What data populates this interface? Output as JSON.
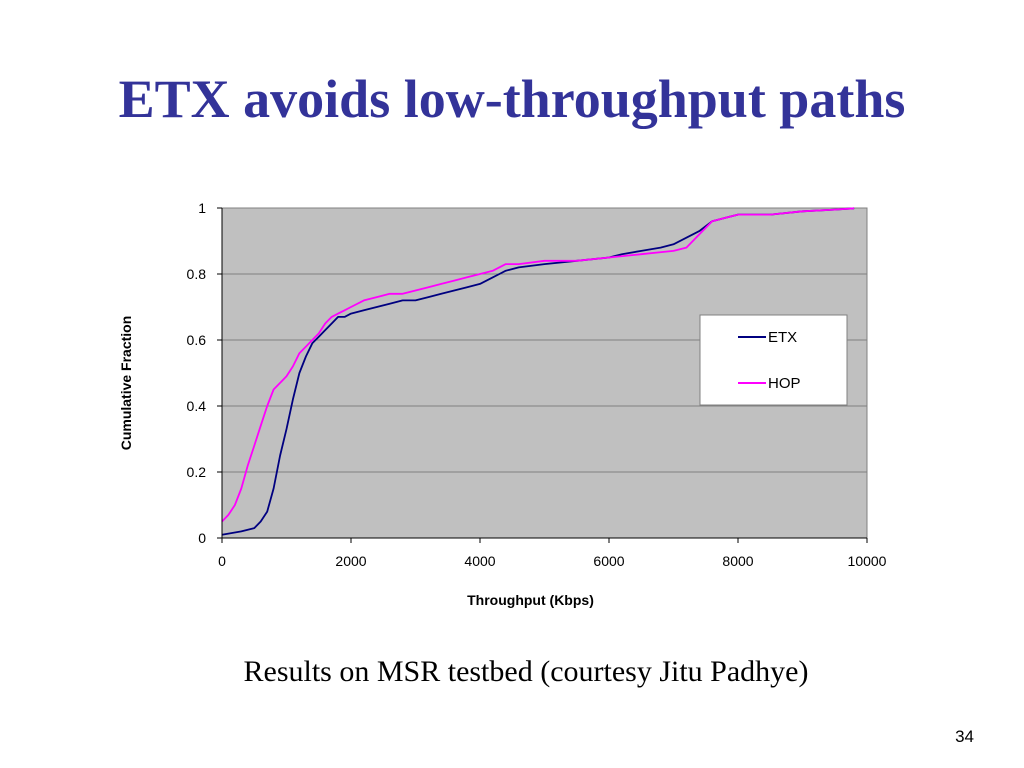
{
  "slide": {
    "title": "ETX avoids low-throughput paths",
    "caption": "Results on MSR testbed (courtesy Jitu Padhye)",
    "page_number": "34"
  },
  "chart_data": {
    "type": "line",
    "xlabel": "Throughput (Kbps)",
    "ylabel": "Cumulative Fraction",
    "xlim": [
      0,
      10000
    ],
    "ylim": [
      0,
      1
    ],
    "x_ticks": [
      "0",
      "2000",
      "4000",
      "6000",
      "8000",
      "10000"
    ],
    "y_ticks": [
      "0",
      "0.2",
      "0.4",
      "0.6",
      "0.8",
      "1"
    ],
    "grid": "horizontal",
    "plot_background": "#c0c0c0",
    "legend_position": "right",
    "series": [
      {
        "name": "ETX",
        "color": "#000080",
        "x": [
          0,
          300,
          500,
          600,
          700,
          800,
          900,
          1000,
          1100,
          1200,
          1300,
          1400,
          1500,
          1600,
          1700,
          1800,
          1900,
          2000,
          2200,
          2400,
          2600,
          2800,
          3000,
          3200,
          3400,
          3600,
          3800,
          4000,
          4200,
          4300,
          4400,
          4600,
          5000,
          5500,
          6000,
          6200,
          6500,
          6800,
          7000,
          7200,
          7400,
          7600,
          7800,
          8000,
          8500,
          9000,
          9500,
          9800
        ],
        "y": [
          0.01,
          0.02,
          0.03,
          0.05,
          0.08,
          0.15,
          0.25,
          0.33,
          0.42,
          0.5,
          0.55,
          0.59,
          0.61,
          0.63,
          0.65,
          0.67,
          0.67,
          0.68,
          0.69,
          0.7,
          0.71,
          0.72,
          0.72,
          0.73,
          0.74,
          0.75,
          0.76,
          0.77,
          0.79,
          0.8,
          0.81,
          0.82,
          0.83,
          0.84,
          0.85,
          0.86,
          0.87,
          0.88,
          0.89,
          0.91,
          0.93,
          0.96,
          0.97,
          0.98,
          0.98,
          0.99,
          0.995,
          0.999
        ]
      },
      {
        "name": "HOP",
        "color": "#ff00ff",
        "x": [
          0,
          100,
          200,
          300,
          400,
          500,
          600,
          700,
          800,
          900,
          1000,
          1100,
          1200,
          1300,
          1400,
          1500,
          1600,
          1700,
          1800,
          1900,
          2000,
          2200,
          2400,
          2600,
          2800,
          3000,
          3200,
          3400,
          3600,
          3800,
          4000,
          4200,
          4400,
          4600,
          5000,
          5500,
          6000,
          6500,
          7000,
          7200,
          7400,
          7600,
          7800,
          8000,
          8500,
          9000,
          9500,
          9800
        ],
        "y": [
          0.05,
          0.07,
          0.1,
          0.15,
          0.22,
          0.28,
          0.34,
          0.4,
          0.45,
          0.47,
          0.49,
          0.52,
          0.56,
          0.58,
          0.6,
          0.62,
          0.65,
          0.67,
          0.68,
          0.69,
          0.7,
          0.72,
          0.73,
          0.74,
          0.74,
          0.75,
          0.76,
          0.77,
          0.78,
          0.79,
          0.8,
          0.81,
          0.83,
          0.83,
          0.84,
          0.84,
          0.85,
          0.86,
          0.87,
          0.88,
          0.92,
          0.96,
          0.97,
          0.98,
          0.98,
          0.99,
          0.995,
          0.999
        ]
      }
    ]
  }
}
